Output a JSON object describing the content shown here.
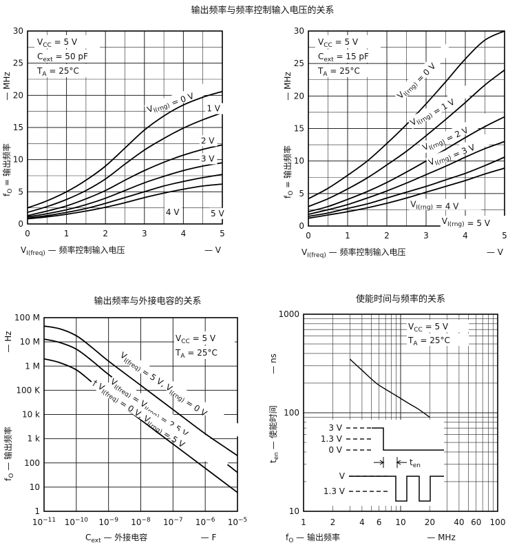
{
  "chart_data": [
    {
      "type": "line",
      "title": "输出频率与频率控制输入电压的关系",
      "xlabel_prefix": "V",
      "xlabel_sub": "I(freq)",
      "xlabel_dash": "—",
      "xlabel_text": "频率控制输入电压",
      "xunit": "— V",
      "ylabel_prefix": "f",
      "ylabel_sub": "O",
      "ylabel_eq": "=",
      "ylabel_text": "输出频率",
      "yunit": "— MHz",
      "xlim": [
        0,
        5
      ],
      "ylim": [
        0,
        30
      ],
      "xticks": [
        "0",
        "1",
        "2",
        "3",
        "4",
        "5"
      ],
      "yticks": [
        "0",
        "5",
        "10",
        "15",
        "20",
        "25",
        "30"
      ],
      "conditions": [
        {
          "main": "V",
          "sub": "CC",
          "rest": " = 5 V"
        },
        {
          "main": "C",
          "sub": "ext",
          "rest": " = 50 pF"
        },
        {
          "main": "T",
          "sub": "A",
          "rest": " = 25°C"
        }
      ],
      "series": [
        {
          "name": "V I(rng) = 0 V",
          "x": [
            0,
            0.5,
            1,
            1.5,
            2,
            2.5,
            3,
            3.5,
            4,
            4.5,
            5
          ],
          "y": [
            2.5,
            3.6,
            5.0,
            6.8,
            9.0,
            11.8,
            14.6,
            16.8,
            18.5,
            19.7,
            20.6
          ]
        },
        {
          "name": "1 V",
          "x": [
            0,
            0.5,
            1,
            1.5,
            2,
            2.5,
            3,
            3.5,
            4,
            4.5,
            5
          ],
          "y": [
            1.8,
            2.7,
            3.8,
            5.2,
            7.0,
            9.3,
            11.5,
            13.3,
            14.9,
            16.2,
            17.3
          ]
        },
        {
          "name": "2 V",
          "x": [
            0,
            0.5,
            1,
            1.5,
            2,
            2.5,
            3,
            3.5,
            4,
            4.5,
            5
          ],
          "y": [
            1.3,
            2.0,
            2.8,
            3.9,
            5.2,
            6.8,
            8.3,
            9.6,
            10.7,
            11.6,
            12.3
          ]
        },
        {
          "name": "3 V",
          "x": [
            0,
            0.5,
            1,
            1.5,
            2,
            2.5,
            3,
            3.5,
            4,
            4.5,
            5
          ],
          "y": [
            1.1,
            1.6,
            2.2,
            3.0,
            4.0,
            5.2,
            6.4,
            7.4,
            8.3,
            9.0,
            9.5
          ]
        },
        {
          "name": "4 V",
          "x": [
            0,
            0.5,
            1,
            1.5,
            2,
            2.5,
            3,
            3.5,
            4,
            4.5,
            5
          ],
          "y": [
            0.9,
            1.3,
            1.8,
            2.4,
            3.2,
            4.1,
            5.0,
            5.9,
            6.6,
            7.2,
            7.7
          ]
        },
        {
          "name": "5 V",
          "x": [
            0,
            0.5,
            1,
            1.5,
            2,
            2.5,
            3,
            3.5,
            4,
            4.5,
            5
          ],
          "y": [
            0.8,
            1.1,
            1.5,
            2.0,
            2.6,
            3.3,
            4.1,
            4.8,
            5.4,
            5.9,
            6.2
          ]
        }
      ],
      "labels": [
        {
          "text": "V I(rng) = 0 V",
          "x": 3.1,
          "y": 17.3,
          "rot": -20
        },
        {
          "text": "1 V",
          "x": 4.6,
          "y": 17.5,
          "rot": 0
        },
        {
          "text": "2 V",
          "x": 4.45,
          "y": 12.5,
          "rot": 0
        },
        {
          "text": "3 V",
          "x": 4.45,
          "y": 9.7,
          "rot": 0
        },
        {
          "text": "4 V",
          "x": 3.55,
          "y": 1.4,
          "rot": 0
        },
        {
          "text": "5 V",
          "x": 4.7,
          "y": 1.2,
          "rot": 0
        }
      ]
    },
    {
      "type": "line",
      "title": "",
      "xlabel_prefix": "V",
      "xlabel_sub": "I(freq)",
      "xlabel_dash": "—",
      "xlabel_text": "频率控制输入电压",
      "xunit": "— V",
      "ylabel_prefix": "f",
      "ylabel_sub": "O",
      "ylabel_eq": "=",
      "ylabel_text": "输出频率",
      "yunit": "— MHz",
      "xlim": [
        0,
        5
      ],
      "ylim": [
        0,
        30
      ],
      "xticks": [
        "0",
        "1",
        "2",
        "3",
        "4",
        "5"
      ],
      "yticks": [
        "0",
        "5",
        "10",
        "15",
        "20",
        "25",
        "30"
      ],
      "conditions": [
        {
          "main": "V",
          "sub": "CC",
          "rest": " = 5 V"
        },
        {
          "main": "C",
          "sub": "ext",
          "rest": " = 15 pF"
        },
        {
          "main": "T",
          "sub": "A",
          "rest": " = 25°C"
        }
      ],
      "series": [
        {
          "name": "V I(rng) = 0 V",
          "x": [
            0,
            0.5,
            1,
            1.5,
            2,
            2.5,
            3,
            3.5,
            4,
            4.5,
            5
          ],
          "y": [
            4.2,
            5.8,
            7.8,
            10.0,
            12.7,
            15.6,
            18.8,
            22.2,
            25.7,
            28.6,
            30.2
          ]
        },
        {
          "name": "1 V",
          "x": [
            0,
            0.5,
            1,
            1.5,
            2,
            2.5,
            3,
            3.5,
            4,
            4.5,
            5
          ],
          "y": [
            3.0,
            4.2,
            5.7,
            7.4,
            9.4,
            11.5,
            13.9,
            16.4,
            19.0,
            21.7,
            24.0
          ]
        },
        {
          "name": "2 V",
          "x": [
            0,
            0.5,
            1,
            1.5,
            2,
            2.5,
            3,
            3.5,
            4,
            4.5,
            5
          ],
          "y": [
            2.2,
            3.0,
            4.1,
            5.3,
            6.7,
            8.3,
            10.0,
            11.8,
            13.6,
            15.3,
            16.8
          ]
        },
        {
          "name": "3 V",
          "x": [
            0,
            0.5,
            1,
            1.5,
            2,
            2.5,
            3,
            3.5,
            4,
            4.5,
            5
          ],
          "y": [
            1.8,
            2.5,
            3.3,
            4.3,
            5.4,
            6.6,
            7.9,
            9.2,
            10.6,
            11.9,
            13.0
          ]
        },
        {
          "name": "4 V",
          "x": [
            0,
            0.5,
            1,
            1.5,
            2,
            2.5,
            3,
            3.5,
            4,
            4.5,
            5
          ],
          "y": [
            1.5,
            2.0,
            2.7,
            3.4,
            4.3,
            5.2,
            6.1,
            7.1,
            8.1,
            9.3,
            10.6
          ]
        },
        {
          "name": "5 V",
          "x": [
            0,
            0.5,
            1,
            1.5,
            2,
            2.5,
            3,
            3.5,
            4,
            4.5,
            5
          ],
          "y": [
            1.2,
            1.7,
            2.2,
            2.8,
            3.5,
            4.3,
            5.2,
            6.1,
            7.0,
            8.0,
            8.9
          ]
        }
      ],
      "labels": [
        {
          "text": "V I(rng) = 0 V",
          "x": 2.35,
          "y": 19.5,
          "rot": -45
        },
        {
          "text": "V I(rng) = 1 V",
          "x": 2.65,
          "y": 15.4,
          "rot": -30
        },
        {
          "text": "V I(rng) = 2 V",
          "x": 2.95,
          "y": 11.6,
          "rot": -25
        },
        {
          "text": "V I(rng) = 3 V",
          "x": 3.1,
          "y": 9.3,
          "rot": -22
        },
        {
          "text": "V I(rng) = 4 V",
          "x": 2.6,
          "y": 2.9,
          "rot": 0
        },
        {
          "text": "V I(rng) = 5 V",
          "x": 3.4,
          "y": 0.3,
          "rot": 0
        }
      ]
    },
    {
      "type": "line",
      "title": "输出频率与外接电容的关系",
      "xlabel_prefix": "C",
      "xlabel_sub": "ext",
      "xlabel_dash": "—",
      "xlabel_text": "外接电容",
      "xunit": "— F",
      "ylabel_prefix": "f",
      "ylabel_sub": "O",
      "ylabel_eq": "—",
      "ylabel_text": "输出频率",
      "yunit": "— Hz",
      "xscale": "log",
      "yscale": "log",
      "xlim": [
        1e-11,
        1e-05
      ],
      "ylim": [
        1,
        100000000.0
      ],
      "xticks": [
        "10−11",
        "10−10",
        "10−9",
        "10−8",
        "10−7",
        "10−6",
        "10−5"
      ],
      "yticks": [
        "1",
        "10",
        "100",
        "1 k",
        "10 k",
        "100 K",
        "1 M",
        "10 M",
        "100 M"
      ],
      "conditions": [
        {
          "main": "V",
          "sub": "CC",
          "rest": " = 5 V"
        },
        {
          "main": "T",
          "sub": "A",
          "rest": " = 25°C"
        }
      ],
      "series": [
        {
          "name": "V I(freq) = 5 V, V I(rng) = 0 V",
          "x": [
            1e-11,
            3e-11,
            1e-10,
            3e-10,
            1e-09,
            1e-08,
            1e-07,
            1e-06,
            1e-05
          ],
          "y": [
            45000000.0,
            35000000.0,
            18000000.0,
            6000000.0,
            1600000.0,
            160000.0,
            16000.0,
            1600,
            200
          ]
        },
        {
          "name": "V I(freq) = V I(rng) = 2.5 V",
          "x": [
            1e-11,
            3e-11,
            1e-10,
            3e-10,
            1e-09,
            1e-08,
            1e-07,
            1e-06,
            1e-05
          ],
          "y": [
            13000000.0,
            9500000.0,
            5000000.0,
            1700000.0,
            450000.0,
            45000.0,
            4500,
            450,
            40
          ]
        },
        {
          "name": "V I(freq) = 0 V, V I(rng) = 5 V",
          "x": [
            1e-11,
            3e-11,
            1e-10,
            3e-10,
            1e-09,
            1e-08,
            1e-07,
            1e-06,
            1e-05
          ],
          "y": [
            2000000.0,
            1400000.0,
            700000.0,
            220000.0,
            60000.0,
            6000,
            600,
            60,
            6
          ]
        }
      ],
      "labels": [
        {
          "text": "V I(freq) = 5 V, V I(rng) = 0 V",
          "x": 2.2e-09,
          "y": 2500000.0,
          "rot": 33
        },
        {
          "text": "V I(freq) = V I(rng) = 2.5 V",
          "x": 1.1e-09,
          "y": 200000.0,
          "rot": 33
        },
        {
          "text": "† V I(freq) = 0 V, V I(rng) = 5 V",
          "x": 3e-10,
          "y": 180000.0,
          "rot": 33
        }
      ]
    },
    {
      "type": "line",
      "title": "使能时间与频率的关系",
      "xlabel_prefix": "f",
      "xlabel_sub": "O",
      "xlabel_dash": "—",
      "xlabel_text": "输出频率",
      "xunit": "— MHz",
      "ylabel_prefix": "t",
      "ylabel_sub": "en",
      "ylabel_eq": "—",
      "ylabel_text": "使能时间",
      "yunit": "— ns",
      "xscale": "log",
      "yscale": "log",
      "xlim": [
        1,
        100
      ],
      "ylim": [
        10,
        1000
      ],
      "xticks": [
        "1",
        "2",
        "4",
        "6",
        "10",
        "20",
        "40",
        "60",
        "100"
      ],
      "yticks": [
        "10",
        "100",
        "1000"
      ],
      "conditions": [
        {
          "main": "V",
          "sub": "CC",
          "rest": " = 5 V"
        },
        {
          "main": "T",
          "sub": "A",
          "rest": " = 25°C"
        }
      ],
      "series": [
        {
          "name": "t en",
          "x": [
            3,
            4,
            5,
            6,
            8,
            10,
            12,
            15,
            20
          ],
          "y": [
            350,
            270,
            220,
            190,
            160,
            140,
            125,
            110,
            90
          ]
        }
      ],
      "inset": {
        "levels": [
          "3 V",
          "1.3 V",
          "0 V"
        ],
        "out_levels": [
          "V",
          "1.3 V"
        ],
        "ten_label_main": "t",
        "ten_label_sub": "en"
      }
    }
  ]
}
